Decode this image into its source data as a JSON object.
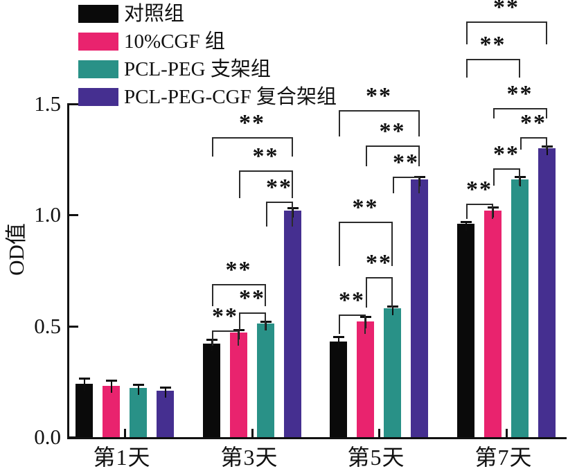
{
  "chart_data": {
    "type": "bar",
    "title": "",
    "ylabel": "OD值",
    "xlabel": "",
    "ylim": [
      0,
      1.5
    ],
    "yticks": [
      {
        "label": "0.0",
        "value": 0.0
      },
      {
        "label": "0.5",
        "value": 0.5
      },
      {
        "label": "1.0",
        "value": 1.0
      },
      {
        "label": "1.5",
        "value": 1.5
      }
    ],
    "grid": false,
    "legend_position": "top-left",
    "categories": [
      "第1天",
      "第3天",
      "第5天",
      "第7天"
    ],
    "series": [
      {
        "name": "对照组",
        "color": "#0a0a0a",
        "values": [
          0.24,
          0.42,
          0.43,
          0.96
        ],
        "errors": [
          0.025,
          0.02,
          0.022,
          0.01
        ]
      },
      {
        "name": "10%CGF 组",
        "color": "#e9236e",
        "values": [
          0.23,
          0.47,
          0.52,
          1.02
        ],
        "errors": [
          0.025,
          0.012,
          0.022,
          0.015
        ]
      },
      {
        "name": "PCL-PEG 支架组",
        "color": "#299187",
        "values": [
          0.22,
          0.51,
          0.58,
          1.16
        ],
        "errors": [
          0.018,
          0.01,
          0.008,
          0.01
        ]
      },
      {
        "name": "PCL-PEG-CGF 复合架组",
        "color": "#452f90",
        "values": [
          0.21,
          1.02,
          1.16,
          1.3
        ],
        "errors": [
          0.015,
          0.01,
          0.01,
          0.008
        ]
      }
    ],
    "significance": [
      {
        "cat": "第3天",
        "a": "对照组",
        "b": "10%CGF 组",
        "label": "**",
        "od": 0.48,
        "arm": 22
      },
      {
        "cat": "第3天",
        "a": "10%CGF 组",
        "b": "PCL-PEG 支架组",
        "label": "**",
        "od": 0.56,
        "arm": 26
      },
      {
        "cat": "第3天",
        "a": "对照组",
        "b": "PCL-PEG 支架组",
        "label": "**",
        "od": 0.69,
        "arm": 32
      },
      {
        "cat": "第3天",
        "a": "PCL-PEG 支架组",
        "b": "PCL-PEG-CGF 复合架组",
        "label": "**",
        "od": 1.06,
        "arm": 36
      },
      {
        "cat": "第3天",
        "a": "10%CGF 组",
        "b": "PCL-PEG-CGF 复合架组",
        "label": "**",
        "od": 1.2,
        "arm": 40
      },
      {
        "cat": "第3天",
        "a": "对照组",
        "b": "PCL-PEG-CGF 复合架组",
        "label": "**",
        "od": 1.35,
        "arm": 28
      },
      {
        "cat": "第5天",
        "a": "对照组",
        "b": "10%CGF 组",
        "label": "**",
        "od": 0.55,
        "arm": 28
      },
      {
        "cat": "第5天",
        "a": "10%CGF 组",
        "b": "PCL-PEG 支架组",
        "label": "**",
        "od": 0.72,
        "arm": 44
      },
      {
        "cat": "第5天",
        "a": "对照组",
        "b": "PCL-PEG 支架组",
        "label": "**",
        "od": 0.97,
        "arm": 64
      },
      {
        "cat": "第5天",
        "a": "PCL-PEG 支架组",
        "b": "PCL-PEG-CGF 复合架组",
        "label": "**",
        "od": 1.17,
        "arm": 24
      },
      {
        "cat": "第5天",
        "a": "10%CGF 组",
        "b": "PCL-PEG-CGF 复合架组",
        "label": "**",
        "od": 1.31,
        "arm": 30
      },
      {
        "cat": "第5天",
        "a": "对照组",
        "b": "PCL-PEG-CGF 复合架组",
        "label": "**",
        "od": 1.47,
        "arm": 38
      },
      {
        "cat": "第7天",
        "a": "对照组",
        "b": "10%CGF 组",
        "label": "**",
        "od": 1.05,
        "arm": 22
      },
      {
        "cat": "第7天",
        "a": "10%CGF 组",
        "b": "PCL-PEG 支架组",
        "label": "**",
        "od": 1.21,
        "arm": 25
      },
      {
        "cat": "第7天",
        "a": "PCL-PEG 支架组",
        "b": "PCL-PEG-CGF 复合架组",
        "label": "**",
        "od": 1.35,
        "arm": 18
      },
      {
        "cat": "第7天",
        "a": "10%CGF 组",
        "b": "PCL-PEG-CGF 复合架组",
        "label": "**",
        "od": 1.48,
        "arm": 15
      },
      {
        "cat": "第7天",
        "a": "对照组",
        "b": "PCL-PEG 支架组",
        "label": "**",
        "od": 1.7,
        "arm": 27
      },
      {
        "cat": "第7天",
        "a": "对照组",
        "b": "PCL-PEG-CGF 复合架组",
        "label": "**",
        "od": 1.87,
        "arm": 33
      }
    ]
  }
}
